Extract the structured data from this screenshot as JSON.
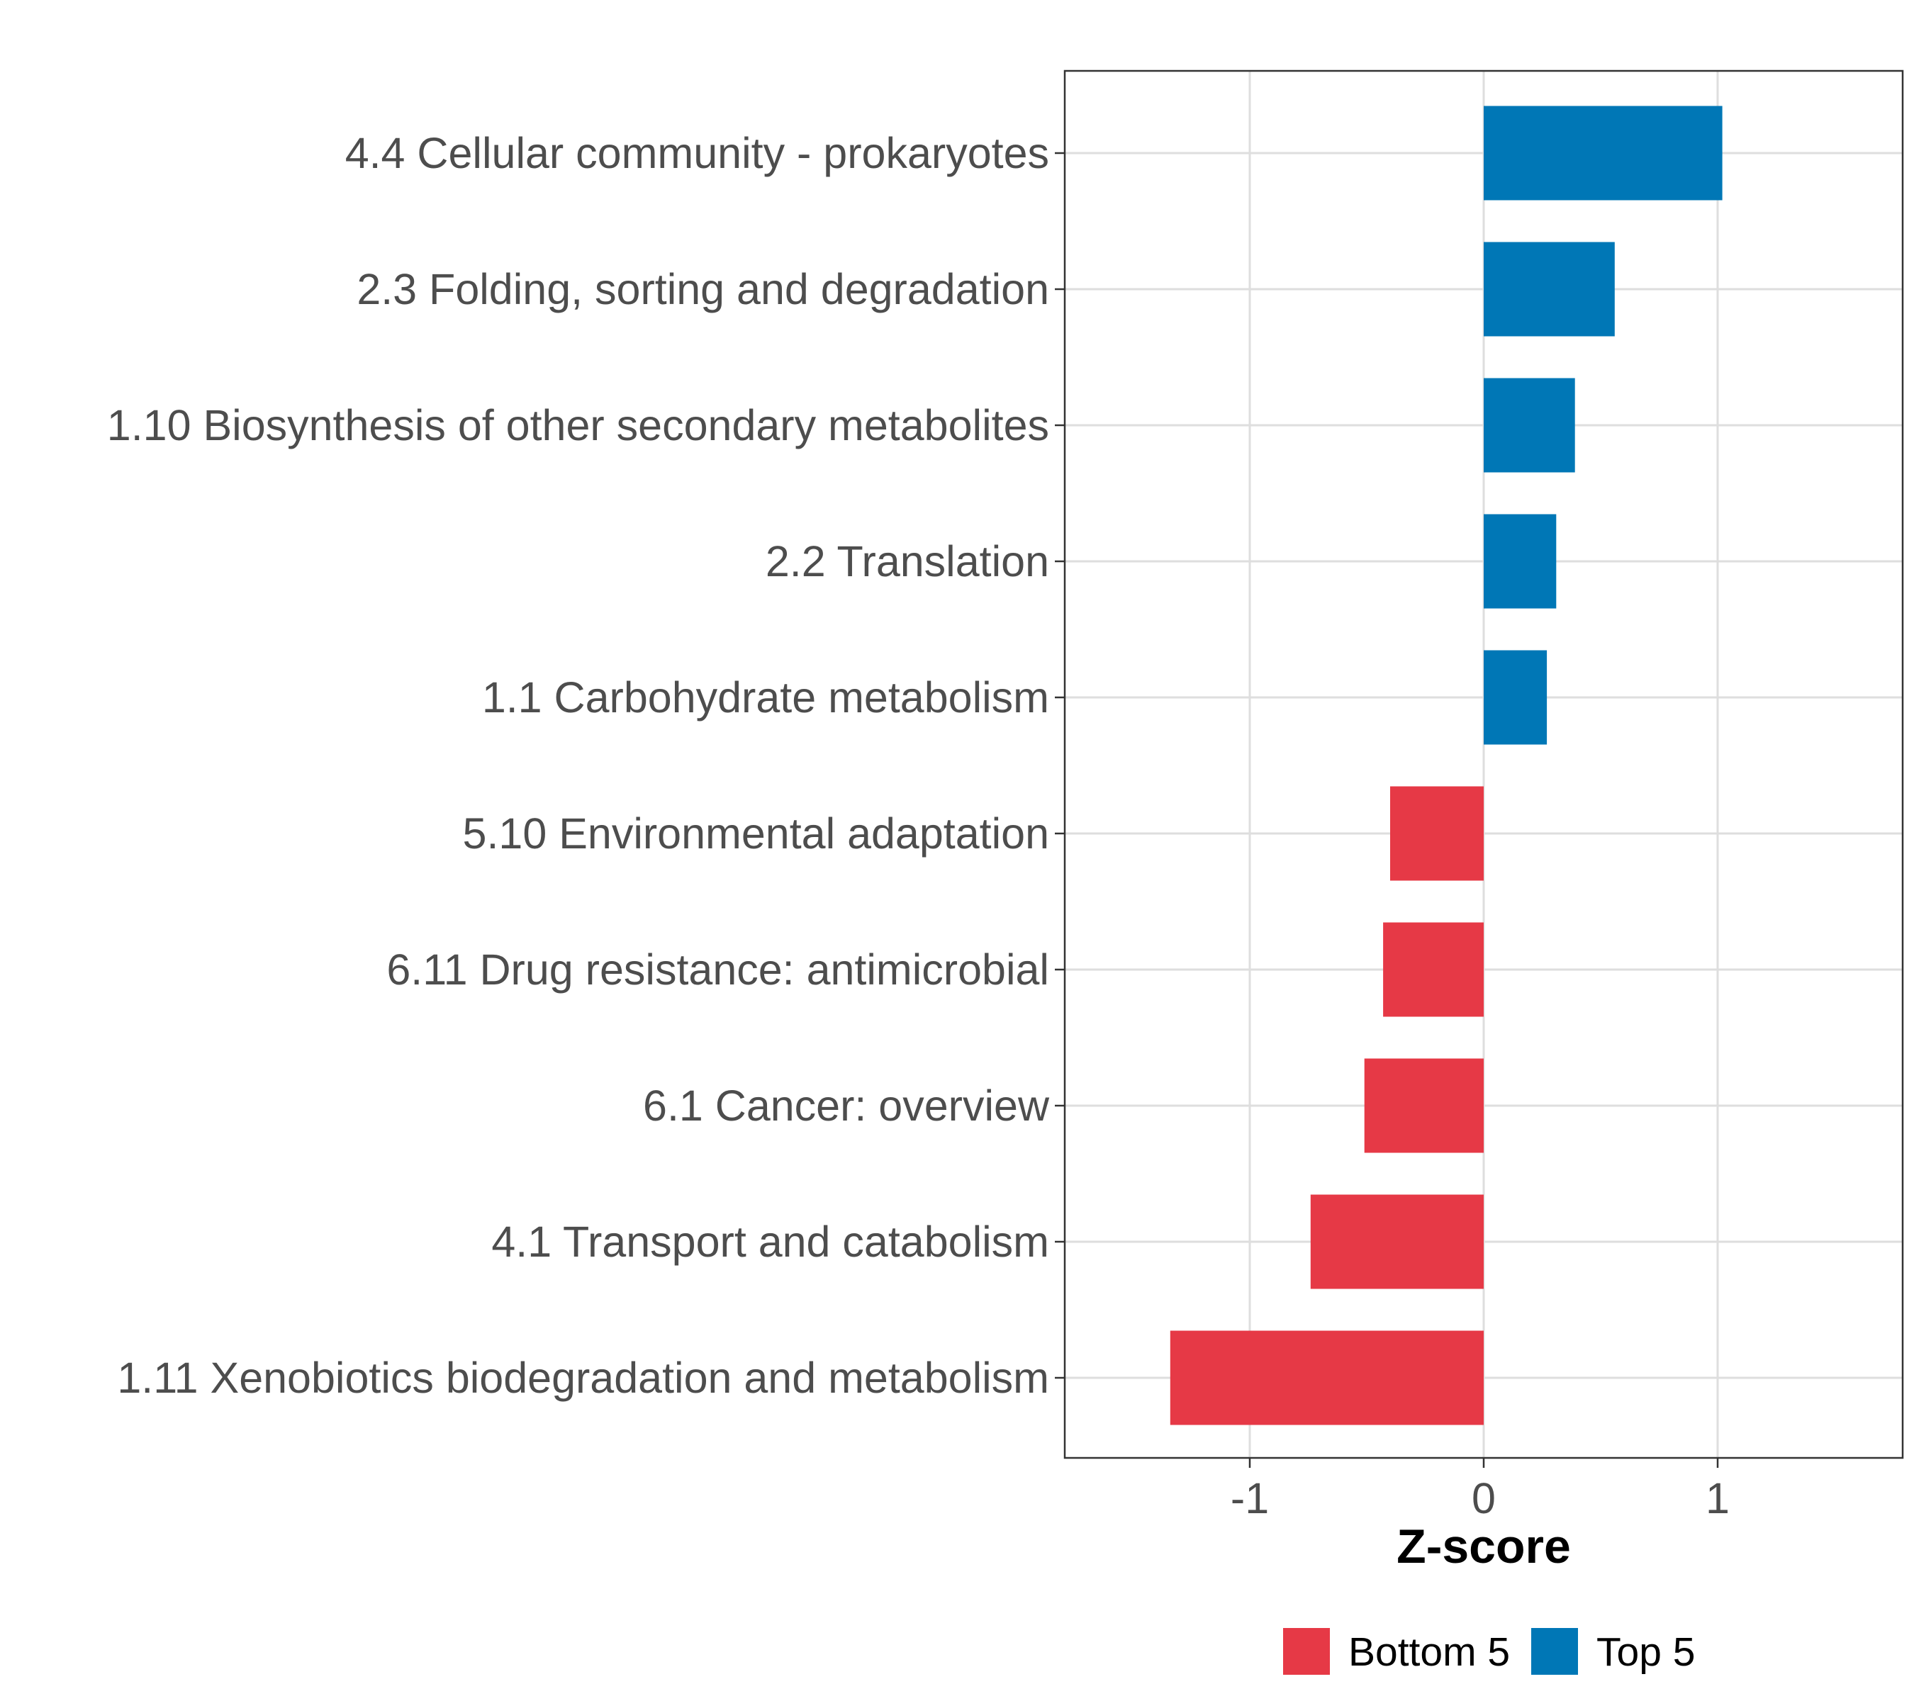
{
  "chart_data": {
    "type": "bar",
    "orientation": "horizontal",
    "title": "",
    "xlabel": "Z-score",
    "ylabel": "",
    "xlim": [
      -1.8,
      1.8
    ],
    "xticks": [
      -1,
      0,
      1
    ],
    "xtick_labels": [
      "-1",
      "0",
      "1"
    ],
    "grid": true,
    "legend_position": "bottom",
    "legend": [
      {
        "name": "Bottom 5",
        "color": "#e63946"
      },
      {
        "name": "Top 5",
        "color": "#0077b6"
      }
    ],
    "categories": [
      "4.4 Cellular community - prokaryotes",
      "2.3 Folding, sorting and degradation",
      "1.10 Biosynthesis of other secondary metabolites",
      "2.2 Translation",
      "1.1 Carbohydrate metabolism",
      "5.10 Environmental adaptation",
      "6.11 Drug resistance: antimicrobial",
      "6.1 Cancer: overview",
      "4.1 Transport and catabolism",
      "1.11 Xenobiotics biodegradation and metabolism"
    ],
    "values": [
      1.02,
      0.56,
      0.39,
      0.31,
      0.27,
      -0.4,
      -0.43,
      -0.51,
      -0.74,
      -1.34
    ],
    "groups": [
      "Top 5",
      "Top 5",
      "Top 5",
      "Top 5",
      "Top 5",
      "Bottom 5",
      "Bottom 5",
      "Bottom 5",
      "Bottom 5",
      "Bottom 5"
    ]
  }
}
